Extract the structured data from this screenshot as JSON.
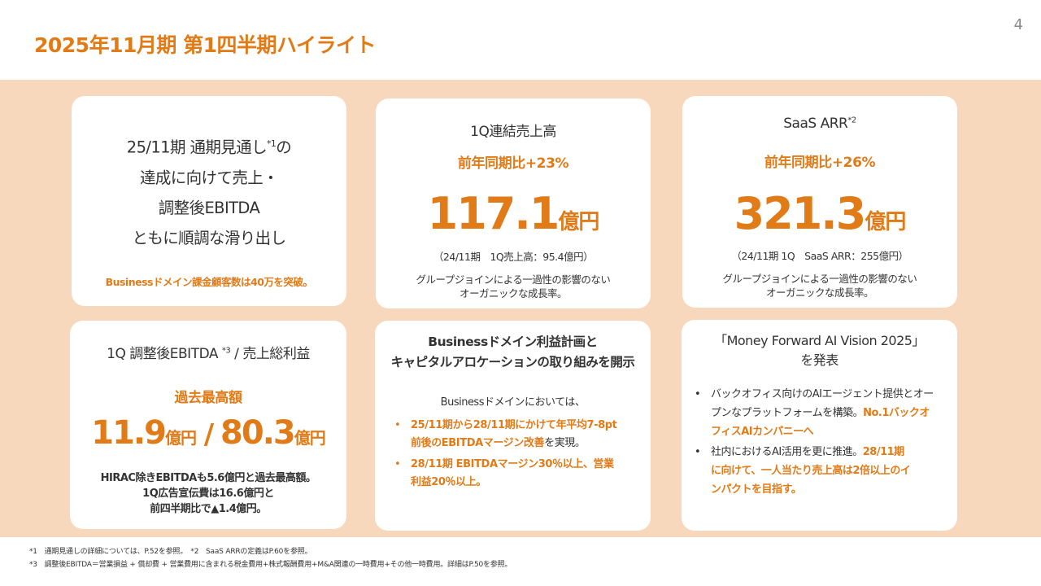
{
  "header": {
    "title": "2025年11月期 第1四半期ハイライト",
    "page_number": "4"
  },
  "card_outlook": {
    "lines": [
      {
        "pre": "25/11期 通期見通し",
        "sup": "*1",
        "post": "の"
      },
      {
        "pre": "達成に向けて売上・"
      },
      {
        "pre": "調整後EBITDA"
      },
      {
        "pre": "ともに順調な滑り出し"
      }
    ],
    "note": "Businessドメイン課金顧客数は40万を突破。"
  },
  "card_revenue": {
    "title": "1Q連結売上高",
    "growth": "前年同期比+23%",
    "value": "117.1",
    "unit": "億円",
    "comparison": "（24/11期　1Q売上高：95.4億円）",
    "note_lines": [
      "グループジョインによる一過性の影響のない",
      "オーガニックな成長率。"
    ]
  },
  "card_arr": {
    "title": "SaaS ARR",
    "title_sup": "*2",
    "growth": "前年同期比+26%",
    "value": "321.3",
    "unit": "億円",
    "comparison": "（24/11期 1Q　SaaS ARR：255億円）",
    "note_lines": [
      "グループジョインによる一過性の影響のない",
      "オーガニックな成長率。"
    ]
  },
  "card_ebitda": {
    "title_pre": "1Q 調整後EBITDA ",
    "title_sup": "*3",
    "title_post": " / 売上総利益",
    "subhead": "過去最高額",
    "value1": "11.9",
    "unit1": "億円",
    "separator": " / ",
    "value2": "80.3",
    "unit2": "億円",
    "note_lines": [
      "HIRAC除きEBITDAも5.6億円と過去最高額。",
      "1Q広告宣伝費は16.6億円と",
      "前四半期比で▲1.4億円。"
    ]
  },
  "card_business": {
    "title_lines": [
      "Businessドメイン利益計画と",
      "キャピタルアロケーションの取り組みを開示"
    ],
    "intro": "Businessドメインにおいては、",
    "bullet_marker": "•",
    "bullets": [
      {
        "line1": "25/11期から28/11期にかけて年平均7-8pt",
        "line2_bold": "前後のEBITDAマージン改善",
        "line2_rest": "を実現。"
      },
      {
        "line1": "28/11期 EBITDAマージン30％以上、営業",
        "line2_bold": "利益20％以上。",
        "line2_rest": ""
      }
    ]
  },
  "card_vision": {
    "title_lines": [
      "「Money Forward AI Vision 2025」",
      "を発表"
    ],
    "bullet_marker": "•",
    "bullets": [
      {
        "lines": [
          "バックオフィス向けのAIエージェント提供とオー",
          "プンなプラットフォームを構築。",
          "フィスAIカンパニーへ"
        ],
        "emph_tail": "No.1バックオ"
      },
      {
        "lines": [
          "社内におけるAI活用を更に推進。",
          "に向けて、一人当たり売上高は2倍以上のイ",
          "ンパクトを目指す。"
        ],
        "emph_tail": "28/11期"
      }
    ]
  },
  "footnotes": [
    "*1　通期見通しの詳細については、P.52を参照。　*2　SaaS ARRの定義はP.60を参照。",
    "*3　調整後EBITDA＝営業損益 + 償却費 + 営業費用に含まれる税金費用+株式報酬費用+M&A関連の一時費用+その他一時費用。詳細はP.50を参照。"
  ],
  "colors": {
    "accent": "#e07b18",
    "band": "#f8d8bc",
    "text": "#333333"
  }
}
